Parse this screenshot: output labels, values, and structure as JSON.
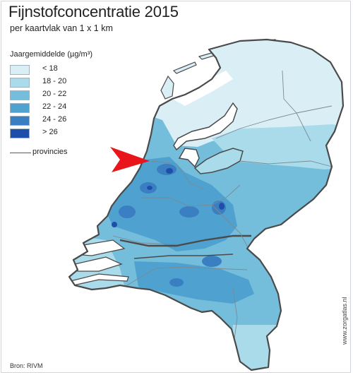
{
  "title": "Fijnstofconcentratie 2015",
  "subtitle": "per kaartvlak van 1 x 1 km",
  "legend": {
    "title": "Jaargemiddelde (µg/m³)",
    "classes": [
      {
        "label": "< 18",
        "color": "#daeef5"
      },
      {
        "label": "18 - 20",
        "color": "#a9dbea"
      },
      {
        "label": "20 - 22",
        "color": "#75bedb"
      },
      {
        "label": "22 - 24",
        "color": "#4fa2cf"
      },
      {
        "label": "24 - 26",
        "color": "#3a7fc2"
      },
      {
        "label": "> 26",
        "color": "#1f4eaa"
      }
    ],
    "province_label": "provincies"
  },
  "colors": {
    "border": "#4a4a4a",
    "water": "#ffffff",
    "arrow": "#e8151b",
    "province_line": "#7a8a95"
  },
  "source": "Bron: RIVM",
  "credit": "www.zorgatlas.nl"
}
